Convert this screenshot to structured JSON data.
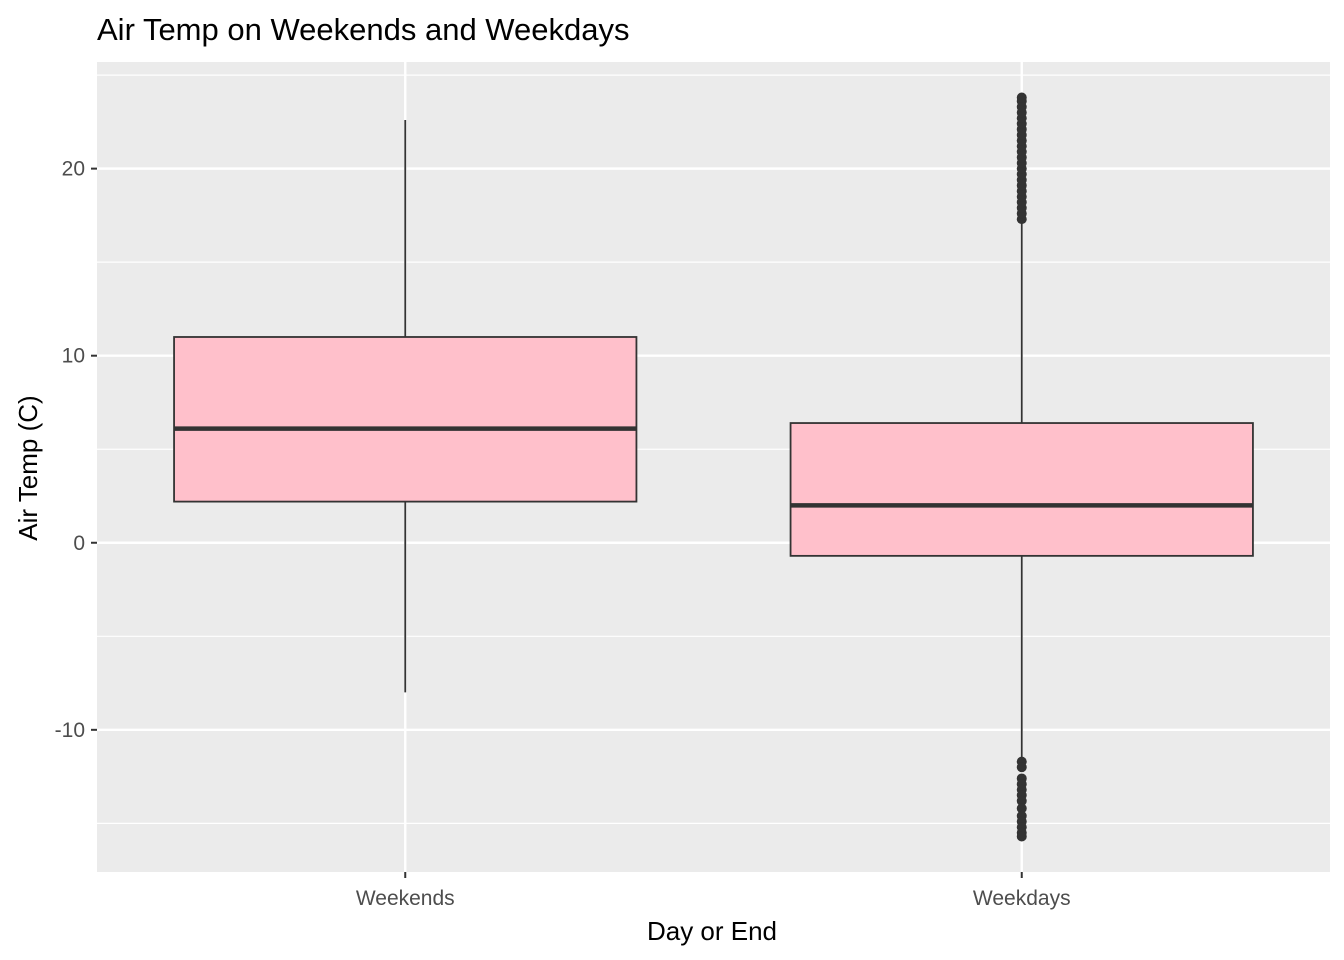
{
  "chart_data": {
    "type": "boxplot",
    "title": "Air Temp on Weekends and Weekdays",
    "xlabel": "Day or End",
    "ylabel": "Air Temp (C)",
    "categories": [
      "Weekends",
      "Weekdays"
    ],
    "ylim": [
      -17.6,
      25.7
    ],
    "y_ticks": [
      -10,
      0,
      10,
      20
    ],
    "y_tick_labels": [
      "-10",
      "0",
      "10",
      "20"
    ],
    "grid": true,
    "legend": "none",
    "colors": {
      "panel": "#ebebeb",
      "grid": "#ffffff",
      "box_fill": "#ffc0cb",
      "box_line": "#333333",
      "outlier": "#333333"
    },
    "series": [
      {
        "category": "Weekends",
        "whisker_low": -8.0,
        "q1": 2.2,
        "median": 6.1,
        "q3": 11.0,
        "whisker_high": 22.6,
        "outliers": []
      },
      {
        "category": "Weekdays",
        "whisker_low": -11.6,
        "q1": -0.7,
        "median": 2.0,
        "q3": 6.4,
        "whisker_high": 17.2,
        "outliers": [
          17.3,
          17.6,
          17.9,
          18.2,
          18.5,
          18.8,
          19.1,
          19.4,
          19.7,
          20.0,
          20.3,
          20.6,
          20.9,
          21.2,
          21.5,
          21.8,
          22.1,
          22.4,
          22.7,
          23.0,
          23.3,
          23.6,
          23.8,
          -11.7,
          -12.0,
          -12.6,
          -12.9,
          -13.2,
          -13.5,
          -13.8,
          -14.2,
          -14.6,
          -14.9,
          -15.2,
          -15.5,
          -15.7
        ]
      }
    ]
  }
}
